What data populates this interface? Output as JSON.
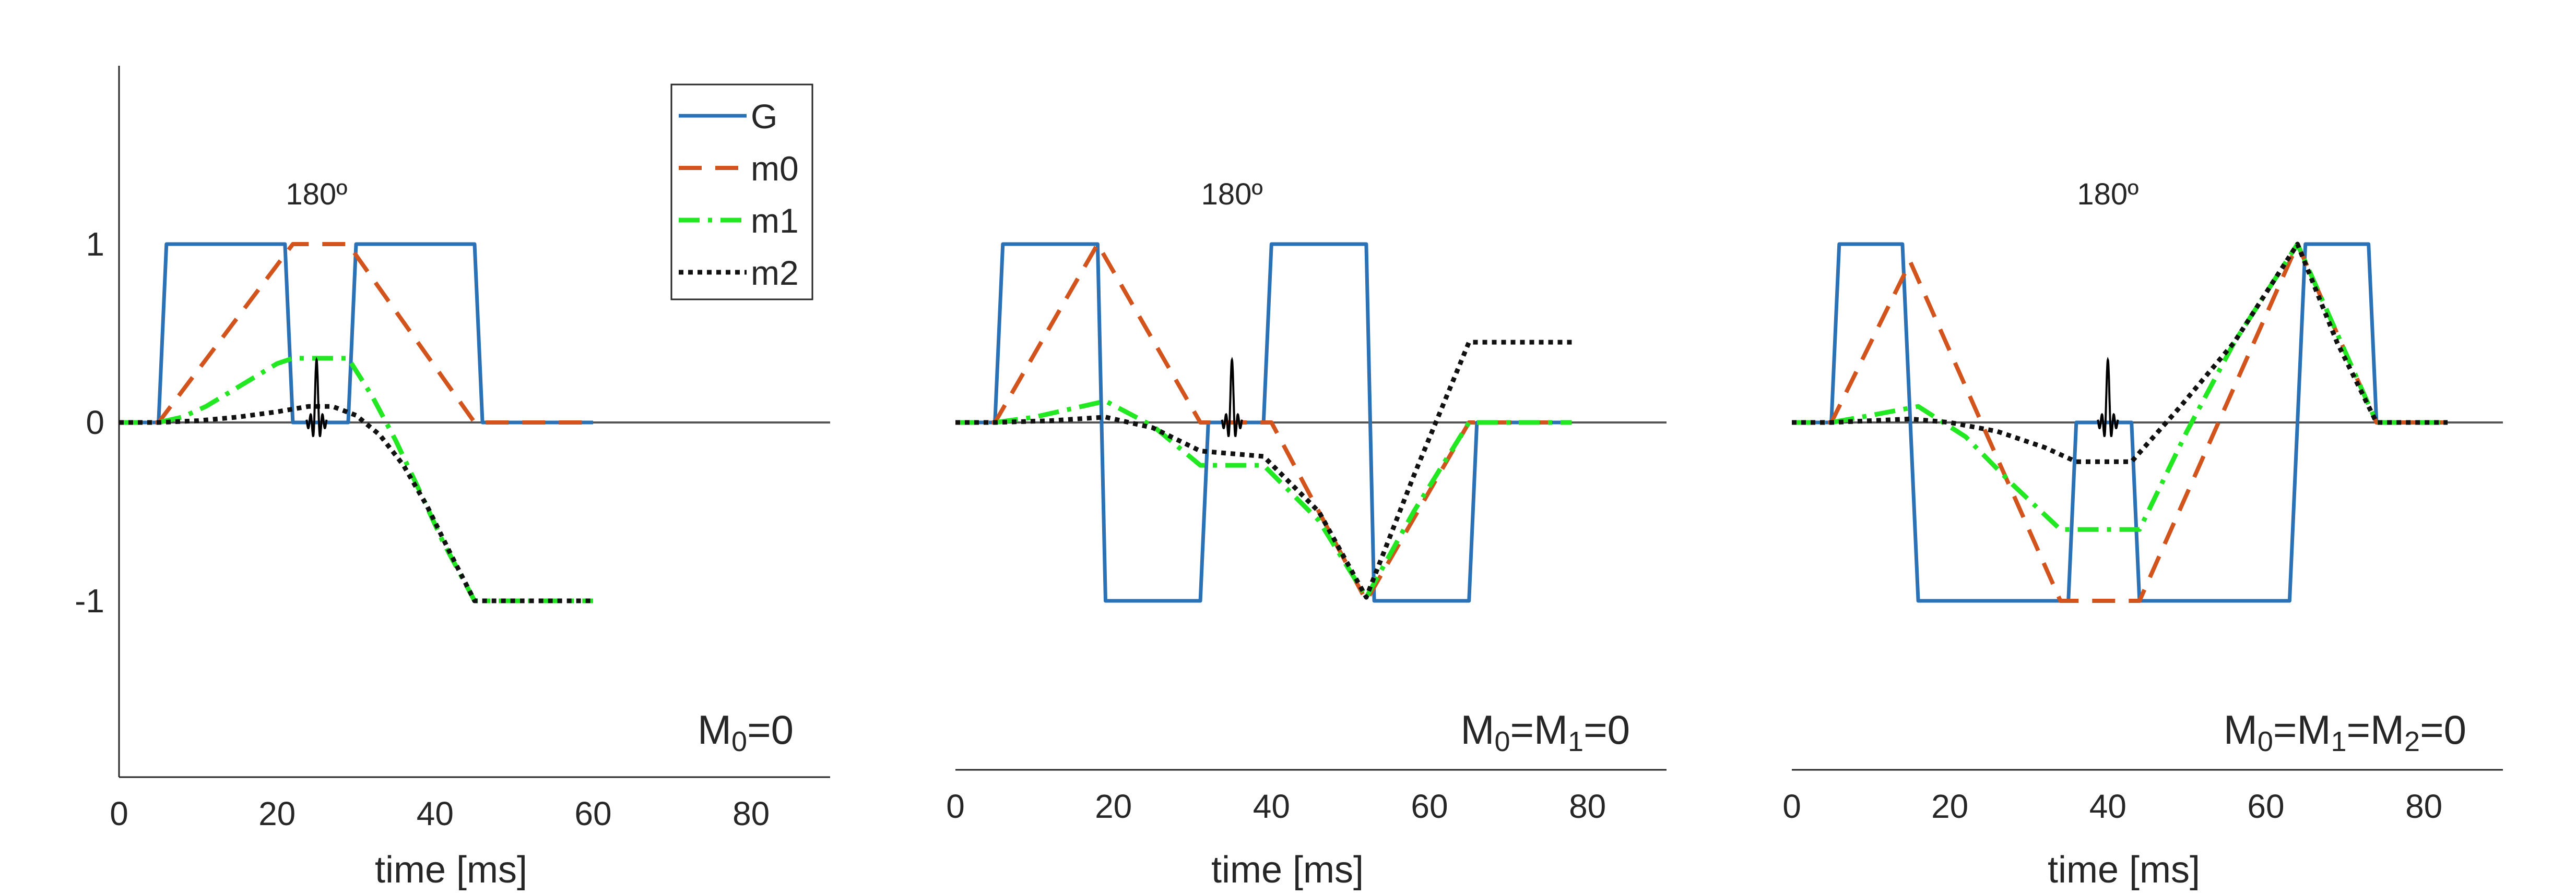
{
  "colors": {
    "G": "#2a72b5",
    "m0": "#d2541c",
    "m1": "#22e822",
    "m2": "#111111",
    "axis": "#262626",
    "zero_line": "#555555",
    "rf_pulse": "#000000"
  },
  "legend": {
    "position": "top-right of first panel",
    "entries": [
      {
        "key": "G",
        "label": "G",
        "style": "solid"
      },
      {
        "key": "m0",
        "label": "m0",
        "style": "dashed"
      },
      {
        "key": "m1",
        "label": "m1",
        "style": "dash-dot"
      },
      {
        "key": "m2",
        "label": "m2",
        "style": "dotted"
      }
    ]
  },
  "chart_data": [
    {
      "type": "line",
      "xlabel": "time [ms]",
      "xlim": [
        0,
        90
      ],
      "ylim": [
        -2,
        2
      ],
      "xticks": [
        "0",
        "20",
        "40",
        "60",
        "80"
      ],
      "yticks": [
        "1",
        "0",
        "-1"
      ],
      "rf_label": "180º",
      "rf_time": 25,
      "constraint": {
        "pre": "M",
        "parts": [
          {
            "sub": "0",
            "after": "=0"
          }
        ]
      },
      "series": [
        {
          "key": "G",
          "x": [
            0,
            5,
            6,
            21,
            22,
            29,
            30,
            45,
            46,
            60
          ],
          "y": [
            0,
            0,
            1,
            1,
            0,
            0,
            1,
            1,
            0,
            0
          ]
        },
        {
          "key": "m0",
          "x": [
            0,
            5,
            22,
            29,
            45,
            46,
            60
          ],
          "y": [
            0,
            0,
            1,
            1,
            0,
            0,
            0
          ]
        },
        {
          "key": "m1",
          "x": [
            0,
            5,
            8,
            11,
            14,
            17,
            20,
            22,
            29,
            32,
            35,
            38,
            41,
            45,
            60
          ],
          "y": [
            0,
            0,
            0.03,
            0.09,
            0.17,
            0.25,
            0.33,
            0.36,
            0.36,
            0.15,
            -0.1,
            -0.38,
            -0.67,
            -1,
            -1
          ]
        },
        {
          "key": "m2",
          "x": [
            0,
            5,
            10,
            15,
            20,
            24,
            27,
            30,
            33,
            36,
            39,
            42,
            45,
            60
          ],
          "y": [
            0,
            0,
            0.01,
            0.03,
            0.06,
            0.09,
            0.09,
            0.04,
            -0.07,
            -0.24,
            -0.47,
            -0.74,
            -1,
            -1
          ]
        }
      ]
    },
    {
      "type": "line",
      "xlabel": "time [ms]",
      "xlim": [
        0,
        90
      ],
      "ylim": [
        -2,
        2
      ],
      "xticks": [
        "0",
        "20",
        "40",
        "60",
        "80"
      ],
      "yticks": [],
      "rf_label": "180º",
      "rf_time": 35,
      "constraint": {
        "pre": "M",
        "parts": [
          {
            "sub": "0",
            "after": "=M"
          },
          {
            "sub": "1",
            "after": "=0"
          }
        ]
      },
      "series": [
        {
          "key": "G",
          "x": [
            0,
            5,
            6,
            18,
            19,
            31,
            32,
            39,
            40,
            52,
            53,
            65,
            66,
            78
          ],
          "y": [
            0,
            0,
            1,
            1,
            -1,
            -1,
            0,
            0,
            1,
            1,
            -1,
            -1,
            0,
            0
          ]
        },
        {
          "key": "m0",
          "x": [
            0,
            5,
            18,
            31,
            40,
            52,
            65,
            78
          ],
          "y": [
            0,
            0,
            1,
            0,
            0,
            -1,
            0,
            0
          ]
        },
        {
          "key": "m1",
          "x": [
            0,
            5,
            10,
            15,
            19,
            25,
            31,
            39,
            46,
            52,
            58,
            65,
            78
          ],
          "y": [
            0,
            0,
            0.03,
            0.08,
            0.12,
            -0.02,
            -0.24,
            -0.24,
            -0.55,
            -0.98,
            -0.5,
            0,
            0
          ]
        },
        {
          "key": "m2",
          "x": [
            0,
            5,
            12,
            19,
            25,
            31,
            39,
            46,
            52,
            58,
            65,
            78
          ],
          "y": [
            0,
            0,
            0.01,
            0.03,
            -0.03,
            -0.16,
            -0.19,
            -0.5,
            -0.98,
            -0.3,
            0.45,
            0.45
          ]
        }
      ]
    },
    {
      "type": "line",
      "xlabel": "time [ms]",
      "xlim": [
        0,
        90
      ],
      "ylim": [
        -2,
        2
      ],
      "xticks": [
        "0",
        "20",
        "40",
        "60",
        "80"
      ],
      "yticks": [],
      "rf_label": "180º",
      "rf_time": 40,
      "constraint": {
        "pre": "M",
        "parts": [
          {
            "sub": "0",
            "after": "=M"
          },
          {
            "sub": "1",
            "after": "=M"
          },
          {
            "sub": "2",
            "after": "=0"
          }
        ]
      },
      "series": [
        {
          "key": "G",
          "x": [
            0,
            5,
            6,
            14,
            16,
            35,
            36,
            43,
            44,
            63,
            65,
            73,
            74,
            83
          ],
          "y": [
            0,
            0,
            1,
            1,
            -1,
            -1,
            0,
            0,
            -1,
            -1,
            1,
            1,
            0,
            0
          ]
        },
        {
          "key": "m0",
          "x": [
            0,
            5,
            15,
            34,
            38,
            44,
            64,
            74,
            83
          ],
          "y": [
            0,
            0,
            0.9,
            -1,
            -1,
            -1,
            1,
            0,
            0
          ]
        },
        {
          "key": "m1",
          "x": [
            0,
            5,
            10,
            16,
            22,
            28,
            34,
            38,
            44,
            50,
            56,
            64,
            69,
            74,
            83
          ],
          "y": [
            0,
            0,
            0.04,
            0.09,
            -0.08,
            -0.35,
            -0.6,
            -0.6,
            -0.6,
            -0.05,
            0.45,
            1,
            0.5,
            0,
            0
          ]
        },
        {
          "key": "m2",
          "x": [
            0,
            5,
            10,
            15,
            20,
            26,
            32,
            36,
            43,
            49,
            56,
            64,
            69,
            74,
            83
          ],
          "y": [
            0,
            0,
            0.01,
            0.02,
            0,
            -0.05,
            -0.14,
            -0.22,
            -0.22,
            0.08,
            0.45,
            1,
            0.45,
            0,
            0
          ]
        }
      ]
    }
  ]
}
